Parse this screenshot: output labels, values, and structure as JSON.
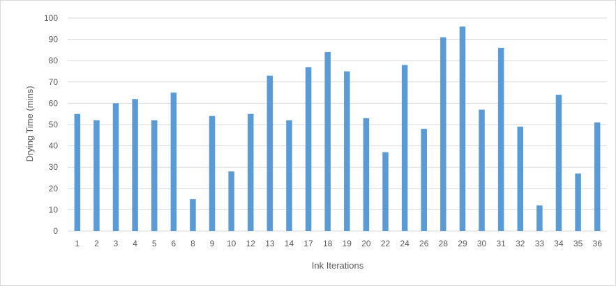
{
  "chart_data": {
    "type": "bar",
    "title": "",
    "xlabel": "Ink Iterations",
    "ylabel": "Drying Time (mins)",
    "ylim": [
      0,
      100
    ],
    "yticks": [
      0,
      10,
      20,
      30,
      40,
      50,
      60,
      70,
      80,
      90,
      100
    ],
    "grid": true,
    "legend": "none",
    "bar_color": "#5b9bd5",
    "categories": [
      "1",
      "2",
      "3",
      "4",
      "5",
      "6",
      "8",
      "9",
      "10",
      "12",
      "13",
      "14",
      "17",
      "18",
      "19",
      "20",
      "22",
      "24",
      "26",
      "28",
      "29",
      "30",
      "31",
      "32",
      "33",
      "34",
      "35",
      "36"
    ],
    "values": [
      55,
      52,
      60,
      62,
      52,
      65,
      15,
      54,
      28,
      55,
      73,
      52,
      77,
      84,
      75,
      53,
      37,
      78,
      48,
      91,
      96,
      57,
      86,
      49,
      12,
      64,
      27,
      51
    ]
  }
}
